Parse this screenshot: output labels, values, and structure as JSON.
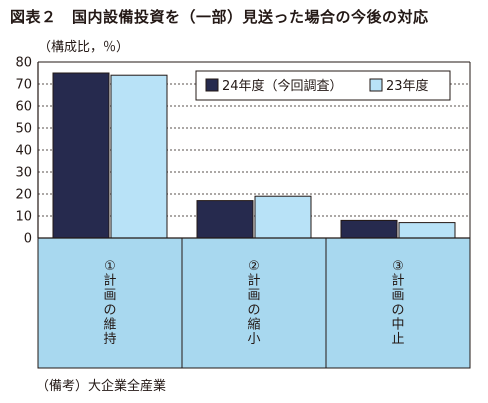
{
  "page": {
    "title": "図表２　国内設備投資を（一部）見送った場合の今後の対応",
    "unit_label": "（構成比，％）",
    "note": "（備考）大企業全産業"
  },
  "chart_data": {
    "type": "bar",
    "categories": [
      "①計画の維持",
      "②計画の縮小",
      "③計画の中止"
    ],
    "series": [
      {
        "name": "24年度（今回調査）",
        "color": "#262a4e",
        "values": [
          75,
          17,
          8
        ]
      },
      {
        "name": "23年度",
        "color": "#b8e2f7",
        "values": [
          74,
          19,
          7
        ]
      }
    ],
    "ylim": [
      0,
      80
    ],
    "yticks": [
      0,
      10,
      20,
      30,
      40,
      50,
      60,
      70,
      80
    ],
    "grid": true,
    "legend_position": "top-right",
    "category_band_color": "#a8d8ef"
  }
}
